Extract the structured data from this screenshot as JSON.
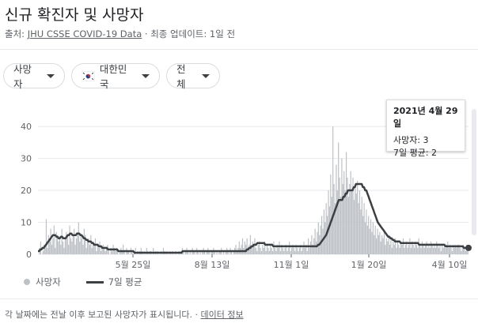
{
  "header": {
    "title": "신규 확진자 및 사망자",
    "source_prefix": "출처: ",
    "source_link": "JHU CSSE COVID-19 Data",
    "source_suffix": " · 최종 업데이트: 1일 전"
  },
  "filters": {
    "metric": "사망자",
    "country": "대한민국",
    "range": "전체"
  },
  "tooltip": {
    "date": "2021년 4월 29일",
    "deaths": "사망자: 3",
    "avg": "7일 평균: 2"
  },
  "legend": {
    "bars": "사망자",
    "line": "7일 평균"
  },
  "footer": {
    "note": "각 날짜에는 전날 이후 보고된 사망자가 표시됩니다. · ",
    "link": "데이터 정보"
  },
  "colors": {
    "bar": "#bdc1c6",
    "line": "#3c4043",
    "grid": "#e8eaed",
    "axis_text": "#5f6368"
  },
  "chart_data": {
    "type": "bar",
    "title": "",
    "xlabel": "",
    "ylabel": "",
    "x_tick_labels": [
      "5월 25일",
      "8월 13일",
      "11월 1일",
      "1월 20일",
      "4월 10일"
    ],
    "y_tick_labels": [
      "0",
      "10",
      "20",
      "30",
      "40"
    ],
    "ylim": [
      0,
      42
    ],
    "grid": true,
    "bar_series_name": "사망자",
    "line_series_name": "7일 평균",
    "segments_note_free": true,
    "bar_values": [
      0,
      2,
      4,
      0,
      1,
      3,
      2,
      11,
      2,
      6,
      4,
      8,
      3,
      5,
      9,
      2,
      7,
      6,
      4,
      5,
      3,
      8,
      4,
      2,
      5,
      7,
      6,
      3,
      9,
      5,
      4,
      6,
      8,
      3,
      5,
      7,
      10,
      4,
      6,
      5,
      3,
      8,
      6,
      2,
      4,
      5,
      3,
      6,
      2,
      4,
      3,
      5,
      1,
      3,
      2,
      4,
      1,
      2,
      3,
      2,
      1,
      2,
      3,
      1,
      0,
      2,
      1,
      3,
      2,
      1,
      2,
      1,
      0,
      1,
      2,
      1,
      3,
      1,
      0,
      2,
      1,
      1,
      0,
      2,
      1,
      0,
      1,
      2,
      0,
      1,
      0,
      1,
      2,
      1,
      0,
      1,
      0,
      2,
      1,
      0,
      1,
      1,
      0,
      2,
      0,
      1,
      0,
      1,
      0,
      0,
      1,
      0,
      2,
      1,
      0,
      1,
      0,
      0,
      1,
      0,
      1,
      0,
      0,
      1,
      0,
      0,
      1,
      0,
      1,
      2,
      1,
      0,
      1,
      2,
      1,
      0,
      1,
      0,
      2,
      1,
      1,
      0,
      2,
      1,
      0,
      1,
      0,
      1,
      2,
      1,
      0,
      1,
      2,
      1,
      0,
      1,
      1,
      2,
      1,
      0,
      1,
      0,
      1,
      1,
      2,
      0,
      1,
      0,
      1,
      2,
      1,
      0,
      2,
      1,
      0,
      1,
      2,
      3,
      1,
      2,
      4,
      2,
      3,
      5,
      2,
      4,
      3,
      5,
      2,
      3,
      6,
      2,
      4,
      3,
      5,
      2,
      1,
      3,
      4,
      2,
      1,
      3,
      2,
      4,
      1,
      3,
      2,
      1,
      3,
      2,
      1,
      4,
      2,
      1,
      3,
      2,
      4,
      1,
      3,
      2,
      1,
      2,
      3,
      1,
      2,
      4,
      1,
      2,
      3,
      2,
      1,
      3,
      2,
      1,
      2,
      3,
      1,
      2,
      4,
      2,
      3,
      1,
      5,
      2,
      4,
      6,
      3,
      5,
      8,
      4,
      7,
      10,
      6,
      9,
      12,
      8,
      14,
      10,
      16,
      12,
      20,
      15,
      25,
      18,
      40,
      22,
      16,
      28,
      20,
      35,
      24,
      18,
      30,
      22,
      26,
      20,
      32,
      24,
      18,
      22,
      26,
      20,
      24,
      17,
      22,
      19,
      23,
      16,
      20,
      14,
      18,
      12,
      16,
      10,
      14,
      9,
      12,
      8,
      11,
      7,
      10,
      6,
      9,
      5,
      8,
      6,
      7,
      4,
      6,
      5,
      7,
      3,
      5,
      4,
      6,
      3,
      5,
      2,
      4,
      3,
      5,
      2,
      4,
      3,
      2,
      4,
      3,
      5,
      2,
      3,
      4,
      2,
      3,
      5,
      2,
      4,
      3,
      2,
      4,
      3,
      2,
      5,
      3,
      2,
      4,
      3,
      2,
      3,
      4,
      2,
      3,
      2,
      4,
      3,
      2,
      3,
      2,
      4,
      3,
      2,
      3,
      1,
      3,
      2,
      3,
      2,
      3,
      4,
      2,
      3,
      2,
      1,
      3,
      2,
      3,
      2,
      3,
      3,
      2,
      1,
      2,
      3,
      2,
      1,
      3,
      2
    ],
    "avg_values": [
      1,
      1,
      1.5,
      1.5,
      2,
      2,
      2.5,
      3,
      3.5,
      4,
      4.5,
      5,
      5.5,
      6,
      6,
      6,
      5.5,
      5.5,
      5,
      5,
      5.5,
      5.5,
      5,
      5,
      5,
      5.5,
      6,
      6,
      6.5,
      6.5,
      6,
      6,
      6,
      6,
      6.5,
      6.5,
      6.5,
      6,
      6,
      5.5,
      5,
      5,
      4.5,
      4.5,
      4,
      4,
      4,
      3.5,
      3.5,
      3,
      3,
      3,
      3,
      2.5,
      2.5,
      2.5,
      2,
      2,
      2,
      2,
      2,
      1.5,
      1.5,
      1.5,
      1.5,
      1.5,
      1.5,
      1.5,
      1.5,
      1.5,
      1,
      1,
      1,
      1,
      1,
      1,
      1,
      1,
      1,
      1,
      1,
      1,
      1,
      1,
      0.5,
      0.5,
      0.5,
      0.5,
      0.5,
      0.5,
      0.5,
      0.5,
      0.5,
      0.5,
      0.5,
      0.5,
      0.5,
      0.5,
      0.5,
      0.5,
      0.5,
      0.5,
      0.5,
      0.5,
      0.5,
      0.5,
      0.5,
      0.5,
      0.5,
      0.5,
      0.5,
      0.5,
      0.5,
      0.5,
      0.5,
      0.5,
      0.5,
      0.5,
      0.5,
      0.5,
      0.5,
      0.5,
      0.5,
      0.5,
      0.5,
      0.5,
      1,
      1,
      1,
      1,
      1,
      1,
      1,
      1,
      1,
      1,
      1,
      1,
      1,
      1,
      1,
      1,
      1,
      1,
      1,
      1,
      1,
      1,
      1,
      1,
      1,
      1,
      1,
      1,
      1,
      1,
      1,
      1,
      1,
      1,
      1,
      1,
      1,
      1,
      1,
      1,
      1,
      1,
      1,
      1,
      1,
      1,
      1,
      1,
      1,
      1,
      1,
      1,
      1,
      1,
      1,
      1,
      1.5,
      1.5,
      2,
      2,
      2.5,
      2.5,
      3,
      3,
      3,
      3.5,
      3.5,
      3.5,
      3.5,
      3.5,
      3.5,
      3.5,
      3,
      3,
      3,
      3,
      3,
      3,
      3,
      2.5,
      2.5,
      2.5,
      2.5,
      2.5,
      2.5,
      2.5,
      2.5,
      2.5,
      2.5,
      2.5,
      2.5,
      2.5,
      2.5,
      2.5,
      2.5,
      2.5,
      2.5,
      2.5,
      2.5,
      2.5,
      2.5,
      2.5,
      2.5,
      2.5,
      2.5,
      2.5,
      2.5,
      2.5,
      2.5,
      2.5,
      2.5,
      2.5,
      2.5,
      2.5,
      2.5,
      2.5,
      2.5,
      2.5,
      3,
      3,
      3.5,
      4,
      4.5,
      5,
      5.5,
      6,
      7,
      8,
      9,
      10,
      11,
      12,
      13,
      14,
      15,
      16,
      17,
      17,
      17,
      17,
      18,
      18,
      19,
      19,
      20,
      20,
      20,
      20,
      20,
      21,
      21,
      22,
      22,
      22,
      22,
      22,
      22,
      21,
      21,
      20,
      20,
      19,
      18,
      17,
      16,
      15,
      14,
      13,
      12,
      11,
      10,
      9.5,
      9,
      8.5,
      8,
      7.5,
      7,
      6.5,
      6,
      5.5,
      5.5,
      5,
      5,
      4.5,
      4.5,
      4,
      4,
      4,
      4,
      4,
      3.5,
      3.5,
      3.5,
      3.5,
      3.5,
      3.5,
      3.5,
      3.5,
      3.5,
      3.5,
      3.5,
      3.5,
      3.5,
      3.5,
      3.5,
      3.5,
      3,
      3,
      3,
      3,
      3,
      3,
      3,
      3,
      3,
      3,
      3,
      3,
      3,
      3,
      3,
      3,
      3,
      3,
      3,
      3,
      3,
      3,
      3,
      2.5,
      2.5,
      2.5,
      2.5,
      2.5,
      2.5,
      2.5,
      2.5,
      2.5,
      2.5,
      2.5,
      2.5,
      2.5,
      2.5,
      2.5,
      2.5,
      2,
      2,
      2,
      2,
      2
    ]
  }
}
